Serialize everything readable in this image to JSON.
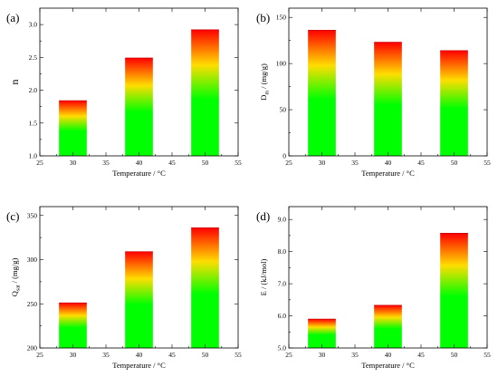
{
  "chart_data": [
    {
      "type": "bar",
      "panel": "(a)",
      "categories": [
        30,
        40,
        50
      ],
      "values": [
        1.84,
        2.49,
        2.92
      ],
      "xlabel": "Temperature / °C",
      "ylabel": "n",
      "ylabel_sub": "",
      "ylabel_rest": "",
      "xlim": [
        25,
        55
      ],
      "ylim": [
        1.0,
        3.25
      ],
      "xticks": [
        25,
        30,
        35,
        40,
        45,
        50,
        55
      ],
      "yticks": [
        "1.0",
        "1.5",
        "2.0",
        "2.5",
        "3.0"
      ],
      "colors": {
        "bottom": "#00ff00",
        "middle": "#ffdd00",
        "top": "#ff0000"
      }
    },
    {
      "type": "bar",
      "panel": "(b)",
      "categories": [
        30,
        40,
        50
      ],
      "values": [
        136,
        123,
        114
      ],
      "xlabel": "Temperature / °C",
      "ylabel": "D",
      "ylabel_sub": "m",
      "ylabel_rest": " / (mg/g)",
      "xlim": [
        25,
        55
      ],
      "ylim": [
        0,
        160
      ],
      "xticks": [
        25,
        30,
        35,
        40,
        45,
        50,
        55
      ],
      "yticks": [
        "0",
        "50",
        "100",
        "150"
      ],
      "colors": {
        "bottom": "#00ff00",
        "middle": "#ffdd00",
        "top": "#ff0000"
      }
    },
    {
      "type": "bar",
      "panel": "(c)",
      "categories": [
        30,
        40,
        50
      ],
      "values": [
        251,
        309,
        336
      ],
      "xlabel": "Temperature / °C",
      "ylabel": "Q",
      "ylabel_sub": "sat",
      "ylabel_rest": " / (mg/g)",
      "xlim": [
        25,
        55
      ],
      "ylim": [
        200,
        360
      ],
      "xticks": [
        25,
        30,
        35,
        40,
        45,
        50,
        55
      ],
      "yticks": [
        "200",
        "250",
        "300",
        "350"
      ],
      "colors": {
        "bottom": "#00ff00",
        "middle": "#ffdd00",
        "top": "#ff0000"
      }
    },
    {
      "type": "bar",
      "panel": "(d)",
      "categories": [
        30,
        40,
        50
      ],
      "values": [
        5.9,
        6.33,
        8.57
      ],
      "xlabel": "Temperature / °C",
      "ylabel": "E / (kJ/mol)",
      "ylabel_sub": "",
      "ylabel_rest": "",
      "xlim": [
        25,
        55
      ],
      "ylim": [
        5.0,
        9.4
      ],
      "xticks": [
        25,
        30,
        35,
        40,
        45,
        50,
        55
      ],
      "yticks": [
        "5.0",
        "6.0",
        "7.0",
        "8.0",
        "9.0"
      ],
      "colors": {
        "bottom": "#00ff00",
        "middle": "#ffdd00",
        "top": "#ff0000"
      }
    }
  ]
}
